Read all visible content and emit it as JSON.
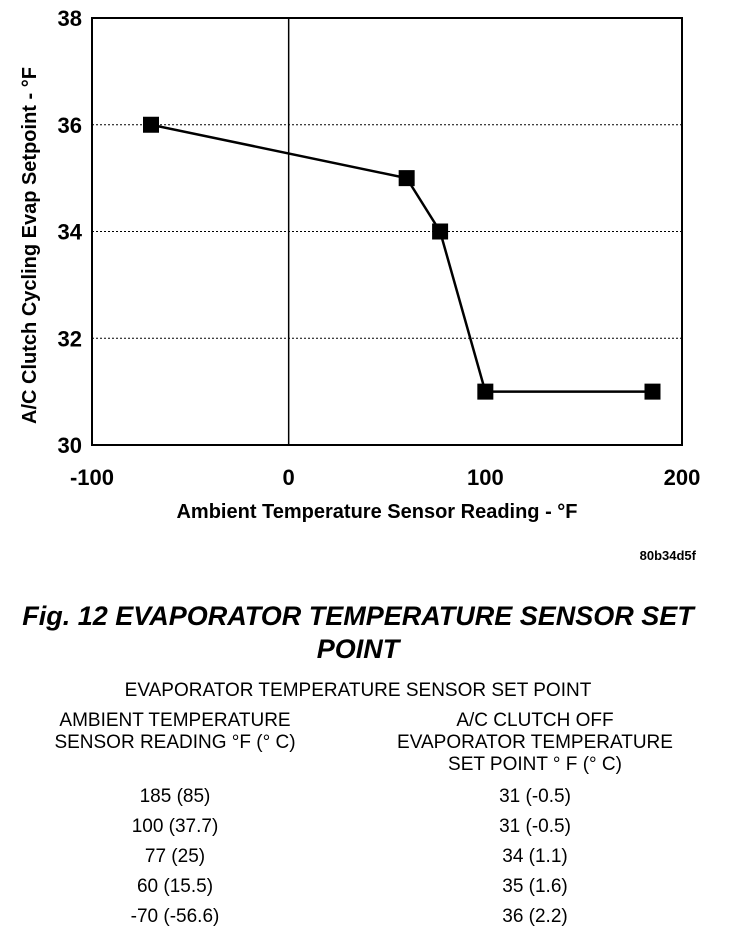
{
  "chart_data": {
    "type": "line",
    "x": [
      -70,
      60,
      77,
      100,
      185
    ],
    "series": [
      {
        "values": [
          36,
          35,
          34,
          31,
          31
        ]
      }
    ],
    "xlim": [
      -100,
      200
    ],
    "ylim": [
      30,
      38
    ],
    "xticks": [
      -100,
      0,
      100,
      200
    ],
    "yticks": [
      30,
      32,
      34,
      36,
      38
    ],
    "xlabel": "Ambient Temperature Sensor Reading - °F",
    "ylabel": "A/C Clutch Cycling Evap Setpoint - °F",
    "grid": "horizontal dotted lines at y ticks; solid vertical line at x = 0",
    "marker": "filled square",
    "color": "#000000"
  },
  "figure_code": "80b34d5f",
  "figure_title": "Fig. 12 EVAPORATOR TEMPERATURE SENSOR SET POINT",
  "table": {
    "title": "EVAPORATOR TEMPERATURE SENSOR SET POINT",
    "headers": [
      "AMBIENT TEMPERATURE\nSENSOR READING °F (° C)",
      "A/C CLUTCH OFF\nEVAPORATOR TEMPERATURE\nSET POINT ° F (° C)"
    ],
    "rows": [
      [
        "185 (85)",
        "31 (-0.5)"
      ],
      [
        "100 (37.7)",
        "31 (-0.5)"
      ],
      [
        "77 (25)",
        "34 (1.1)"
      ],
      [
        "60 (15.5)",
        "35 (1.6)"
      ],
      [
        "-70 (-56.6)",
        "36 (2.2)"
      ]
    ]
  }
}
